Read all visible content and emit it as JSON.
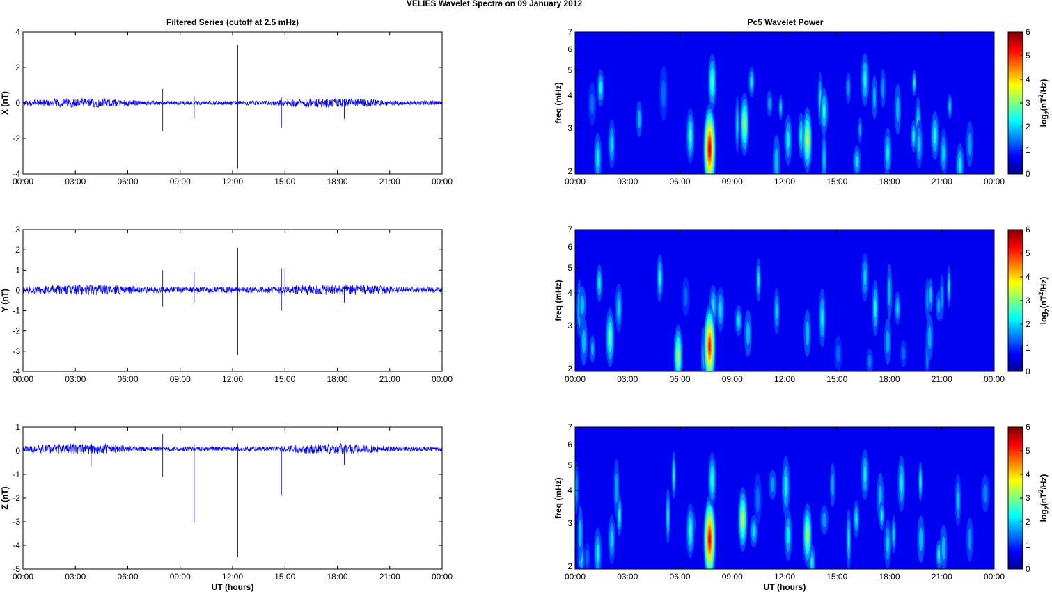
{
  "figure": {
    "title": "VELIES Wavelet Spectra on 09 January   2012",
    "left_title": "Filtered Series (cutoff at 2.5 mHz)",
    "right_title": "Pc5 Wavelet Power"
  },
  "colors": {
    "trace": "#0000ff",
    "axis": "#000000",
    "background": "#ffffff"
  },
  "chart_data": [
    {
      "type": "line",
      "component": "X",
      "ylabel": "X (nT)",
      "xlabel": "",
      "ylim": [
        -4,
        4
      ],
      "yticks": [
        "-4",
        "-2",
        "0",
        "2",
        "4"
      ],
      "xticks": [
        "00:00",
        "03:00",
        "06:00",
        "09:00",
        "12:00",
        "15:00",
        "18:00",
        "21:00",
        "00:00"
      ],
      "xlim_hours": [
        0,
        24
      ],
      "noise_amplitude": [
        0.12,
        0.3
      ],
      "spikes": [
        {
          "t": 8.0,
          "min": -1.6,
          "max": 0.8
        },
        {
          "t": 9.8,
          "min": -0.9,
          "max": 0.4
        },
        {
          "t": 12.3,
          "min": -3.7,
          "max": 3.3
        },
        {
          "t": 14.8,
          "min": -1.4,
          "max": 0.3
        },
        {
          "t": 18.4,
          "min": -0.9,
          "max": 0.2
        }
      ]
    },
    {
      "type": "line",
      "component": "Y",
      "ylabel": "Y (nT)",
      "xlabel": "",
      "ylim": [
        -4,
        3
      ],
      "yticks": [
        "-4",
        "-3",
        "-2",
        "-1",
        "0",
        "1",
        "2",
        "3"
      ],
      "xticks": [
        "00:00",
        "03:00",
        "06:00",
        "09:00",
        "12:00",
        "15:00",
        "18:00",
        "21:00",
        "00:00"
      ],
      "xlim_hours": [
        0,
        24
      ],
      "noise_amplitude": [
        0.15,
        0.3
      ],
      "spikes": [
        {
          "t": 8.0,
          "min": -0.8,
          "max": 1.0
        },
        {
          "t": 9.8,
          "min": -0.6,
          "max": 0.9
        },
        {
          "t": 12.3,
          "min": -3.2,
          "max": 2.1
        },
        {
          "t": 14.8,
          "min": -1.0,
          "max": 1.1
        },
        {
          "t": 15.0,
          "min": -0.3,
          "max": 1.1
        },
        {
          "t": 18.4,
          "min": -0.6,
          "max": 0.2
        }
      ]
    },
    {
      "type": "line",
      "component": "Z",
      "ylabel": "Z (nT)",
      "xlabel": "UT (hours)",
      "ylim": [
        -5,
        1
      ],
      "yticks": [
        "-5",
        "-4",
        "-3",
        "-2",
        "-1",
        "0",
        "1"
      ],
      "xticks": [
        "00:00",
        "03:00",
        "06:00",
        "09:00",
        "12:00",
        "15:00",
        "18:00",
        "21:00",
        "00:00"
      ],
      "xlim_hours": [
        0,
        24
      ],
      "noise_amplitude": [
        0.1,
        0.25
      ],
      "spikes": [
        {
          "t": 3.9,
          "min": -0.7,
          "max": 0.1
        },
        {
          "t": 8.0,
          "min": -1.1,
          "max": 0.7
        },
        {
          "t": 9.8,
          "min": -3.0,
          "max": 0.3
        },
        {
          "t": 12.3,
          "min": -4.5,
          "max": 0.3
        },
        {
          "t": 14.8,
          "min": -1.9,
          "max": 0.2
        },
        {
          "t": 18.4,
          "min": -0.6,
          "max": 0.2
        }
      ]
    },
    {
      "type": "heatmap",
      "component": "X",
      "ylabel": "freq (mHz)",
      "xlabel": "",
      "yscale": "log",
      "ylim": [
        2,
        7
      ],
      "yticks": [
        "2",
        "3",
        "4",
        "5",
        "6",
        "7"
      ],
      "xticks": [
        "00:00",
        "03:00",
        "06:00",
        "09:00",
        "12:00",
        "15:00",
        "18:00",
        "21:00",
        "00:00"
      ],
      "xlim_hours": [
        0,
        24
      ],
      "colorbar_label": "log2(nT2/Hz)",
      "clim": [
        0,
        6
      ],
      "cticks": [
        "0",
        "1",
        "2",
        "3",
        "4",
        "5",
        "6"
      ],
      "blobs": [
        {
          "t": 1.3,
          "f": 2.3,
          "amp": 1.8
        },
        {
          "t": 2.1,
          "f": 2.6,
          "amp": 1.6
        },
        {
          "t": 6.6,
          "f": 2.8,
          "amp": 2.2
        },
        {
          "t": 7.7,
          "f": 2.5,
          "amp": 5.8
        },
        {
          "t": 7.85,
          "f": 4.5,
          "amp": 2.4
        },
        {
          "t": 9.7,
          "f": 3.1,
          "amp": 3.0
        },
        {
          "t": 12.2,
          "f": 2.7,
          "amp": 1.8
        },
        {
          "t": 13.3,
          "f": 2.7,
          "amp": 3.3
        },
        {
          "t": 16.6,
          "f": 4.6,
          "amp": 2.0
        },
        {
          "t": 17.9,
          "f": 2.4,
          "amp": 1.8
        },
        {
          "t": 19.7,
          "f": 2.6,
          "amp": 1.5
        },
        {
          "t": 21.1,
          "f": 2.4,
          "amp": 1.6
        },
        {
          "t": 22.6,
          "f": 2.6,
          "amp": 1.2
        }
      ]
    },
    {
      "type": "heatmap",
      "component": "Y",
      "ylabel": "freq (mHz)",
      "xlabel": "",
      "yscale": "log",
      "ylim": [
        2,
        7
      ],
      "yticks": [
        "2",
        "3",
        "4",
        "5",
        "6",
        "7"
      ],
      "xticks": [
        "00:00",
        "03:00",
        "06:00",
        "09:00",
        "12:00",
        "15:00",
        "18:00",
        "21:00",
        "00:00"
      ],
      "xlim_hours": [
        0,
        24
      ],
      "colorbar_label": "log2(nT2/Hz)",
      "clim": [
        0,
        6
      ],
      "cticks": [
        "0",
        "1",
        "2",
        "3",
        "4",
        "5",
        "6"
      ],
      "blobs": [
        {
          "t": 0.5,
          "f": 2.6,
          "amp": 1.4
        },
        {
          "t": 2.0,
          "f": 2.7,
          "amp": 2.6
        },
        {
          "t": 2.5,
          "f": 3.5,
          "amp": 1.6
        },
        {
          "t": 5.9,
          "f": 2.3,
          "amp": 3.0
        },
        {
          "t": 7.7,
          "f": 2.5,
          "amp": 5.3
        },
        {
          "t": 9.9,
          "f": 2.8,
          "amp": 1.4
        },
        {
          "t": 13.3,
          "f": 2.8,
          "amp": 1.4
        },
        {
          "t": 16.6,
          "f": 4.6,
          "amp": 1.6
        },
        {
          "t": 17.9,
          "f": 2.6,
          "amp": 1.3
        },
        {
          "t": 20.3,
          "f": 2.7,
          "amp": 1.3
        }
      ]
    },
    {
      "type": "heatmap",
      "component": "Z",
      "ylabel": "freq (mHz)",
      "xlabel": "UT (hours)",
      "yscale": "log",
      "ylim": [
        2,
        7
      ],
      "yticks": [
        "2",
        "3",
        "4",
        "5",
        "6",
        "7"
      ],
      "xticks": [
        "00:00",
        "03:00",
        "06:00",
        "09:00",
        "12:00",
        "15:00",
        "18:00",
        "21:00",
        "00:00"
      ],
      "xlim_hours": [
        0,
        24
      ],
      "colorbar_label": "log2(nT2/Hz)",
      "clim": [
        0,
        6
      ],
      "cticks": [
        "0",
        "1",
        "2",
        "3",
        "4",
        "5",
        "6"
      ],
      "blobs": [
        {
          "t": 1.3,
          "f": 2.3,
          "amp": 1.8
        },
        {
          "t": 2.1,
          "f": 2.6,
          "amp": 1.6
        },
        {
          "t": 6.6,
          "f": 2.8,
          "amp": 2.2
        },
        {
          "t": 7.7,
          "f": 2.6,
          "amp": 5.6
        },
        {
          "t": 7.85,
          "f": 4.4,
          "amp": 2.2
        },
        {
          "t": 9.6,
          "f": 3.1,
          "amp": 3.2
        },
        {
          "t": 12.2,
          "f": 2.7,
          "amp": 1.8
        },
        {
          "t": 13.3,
          "f": 2.7,
          "amp": 3.1
        },
        {
          "t": 16.6,
          "f": 4.6,
          "amp": 1.8
        },
        {
          "t": 17.9,
          "f": 2.5,
          "amp": 1.6
        },
        {
          "t": 19.8,
          "f": 2.6,
          "amp": 1.4
        },
        {
          "t": 21.1,
          "f": 2.4,
          "amp": 1.4
        },
        {
          "t": 22.6,
          "f": 2.6,
          "amp": 1.1
        }
      ]
    }
  ]
}
